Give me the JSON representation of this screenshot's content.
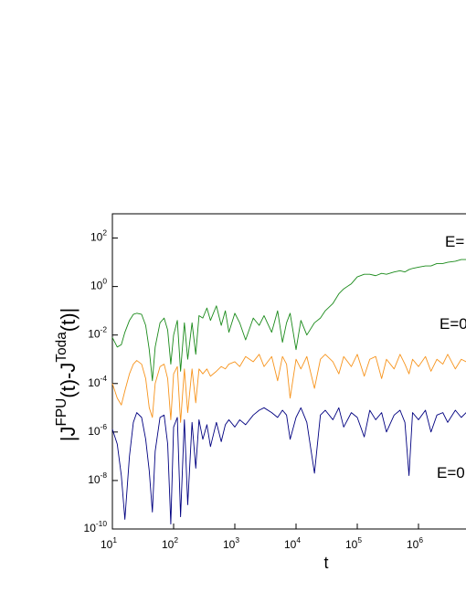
{
  "chart_data": {
    "type": "line",
    "x_label": "t",
    "y_label": "|J^{FPU}(t)-J^{Toda}(t)|",
    "log_x": true,
    "log_y": true,
    "xlim": [
      10,
      10000000
    ],
    "ylim": [
      1e-10,
      1000
    ],
    "xticks": [
      {
        "value": 10,
        "label": "10^{1}"
      },
      {
        "value": 100,
        "label": "10^{2}"
      },
      {
        "value": 1000,
        "label": "10^{3}"
      },
      {
        "value": 10000,
        "label": "10^{4}"
      },
      {
        "value": 100000,
        "label": "10^{5}"
      },
      {
        "value": 1000000,
        "label": "10^{6}"
      }
    ],
    "yticks": [
      {
        "value": 1e-10,
        "label": "10^{-10}"
      },
      {
        "value": 1e-08,
        "label": "10^{-8}"
      },
      {
        "value": 1e-06,
        "label": "10^{-6}"
      },
      {
        "value": 0.0001,
        "label": "10^{-4}"
      },
      {
        "value": 0.01,
        "label": "10^{-2}"
      },
      {
        "value": 1,
        "label": "10^{0}"
      },
      {
        "value": 100,
        "label": "10^{2}"
      }
    ],
    "annotations": [
      "E=",
      "E=0",
      "E=0"
    ],
    "x": [
      10,
      12,
      14,
      16,
      19,
      22,
      25,
      30,
      35,
      40,
      45,
      50,
      60,
      70,
      80,
      90,
      100,
      115,
      130,
      150,
      170,
      200,
      230,
      260,
      300,
      350,
      400,
      500,
      600,
      700,
      800,
      1000,
      1200,
      1500,
      2000,
      2500,
      3000,
      4000,
      5000,
      6000,
      7000,
      8000,
      10000,
      12000,
      15000,
      20000,
      25000,
      30000,
      40000,
      50000,
      60000,
      80000,
      100000,
      130000,
      160000,
      200000,
      250000,
      300000,
      400000,
      500000,
      600000,
      700000,
      800000,
      1000000,
      1300000,
      1600000,
      2000000,
      2500000,
      3000000,
      4000000,
      5000000,
      6000000
    ],
    "series": [
      {
        "color": "#1a8a1a",
        "values": [
          0.0079,
          0.0032,
          0.004,
          0.013,
          0.04,
          0.071,
          0.079,
          0.071,
          0.025,
          0.0025,
          0.00013,
          0.0032,
          0.032,
          0.05,
          0.016,
          0.00063,
          0.01,
          0.04,
          0.00032,
          0.032,
          0.001,
          0.032,
          0.0016,
          0.063,
          0.05,
          0.13,
          0.04,
          0.16,
          0.025,
          0.1,
          0.013,
          0.079,
          0.032,
          0.0063,
          0.05,
          0.025,
          0.063,
          0.013,
          0.1,
          0.005,
          0.032,
          0.079,
          0.0025,
          0.04,
          0.01,
          0.032,
          0.05,
          0.1,
          0.2,
          0.5,
          0.8,
          1.3,
          2.5,
          3.2,
          3.2,
          2.8,
          3.5,
          3.2,
          4,
          4.5,
          4,
          5,
          5.6,
          6.3,
          7.1,
          7.1,
          8.9,
          8.9,
          10,
          11,
          13,
          13
        ]
      },
      {
        "color": "#f7941d",
        "values": [
          0.0001,
          2.5e-05,
          1.3e-05,
          5e-05,
          0.00025,
          0.00063,
          0.00089,
          0.00063,
          0.00016,
          1e-05,
          4e-06,
          0.0001,
          0.0005,
          0.00063,
          0.00016,
          3.2e-06,
          0.00025,
          0.0005,
          2.5e-06,
          0.0004,
          6.3e-06,
          0.0004,
          1.6e-05,
          0.0004,
          0.00025,
          0.0004,
          0.0002,
          0.00032,
          0.0005,
          0.0004,
          0.00063,
          0.00079,
          0.0005,
          0.0013,
          0.00079,
          0.0016,
          0.0005,
          0.0013,
          0.00013,
          0.0013,
          0.00063,
          2.5e-05,
          0.001,
          0.0004,
          0.0013,
          6.3e-05,
          0.001,
          0.0016,
          0.00079,
          0.00025,
          0.0013,
          0.0005,
          0.0016,
          0.0002,
          0.001,
          0.0013,
          0.00016,
          0.001,
          0.0004,
          0.0016,
          0.00063,
          0.00025,
          0.001,
          0.0005,
          0.0013,
          0.00032,
          0.001,
          0.00063,
          0.0016,
          0.0004,
          0.001,
          0.00079
        ]
      },
      {
        "color": "#000080",
        "values": [
          1.3e-06,
          3.2e-07,
          1.6e-08,
          2.5e-10,
          1e-07,
          2.5e-06,
          6.3e-06,
          4e-06,
          5e-07,
          2.5e-08,
          5e-10,
          1.6e-07,
          4e-06,
          5e-06,
          3.2e-07,
          1.6e-10,
          1.6e-06,
          4e-06,
          3.2e-10,
          3.2e-06,
          1e-09,
          2.5e-06,
          3.2e-08,
          3.2e-06,
          5e-07,
          2e-06,
          2.5e-07,
          2.5e-06,
          4e-07,
          2e-06,
          3.2e-06,
          1.6e-06,
          3.2e-06,
          2e-06,
          5e-06,
          7.9e-06,
          1e-05,
          6.3e-06,
          4e-06,
          7.9e-06,
          5e-06,
          5e-07,
          4e-06,
          1e-05,
          2.5e-06,
          2e-08,
          5e-06,
          7.9e-06,
          3.2e-06,
          1e-05,
          1.6e-06,
          6.3e-06,
          4e-06,
          6.3e-07,
          7.9e-06,
          3.2e-06,
          6.3e-06,
          1e-06,
          5e-06,
          7.9e-06,
          2.5e-06,
          1.6e-08,
          6.3e-06,
          3.2e-06,
          7.9e-06,
          1e-06,
          5e-06,
          6.3e-06,
          2.5e-06,
          7.9e-06,
          4e-06,
          6.3e-06
        ]
      }
    ]
  }
}
